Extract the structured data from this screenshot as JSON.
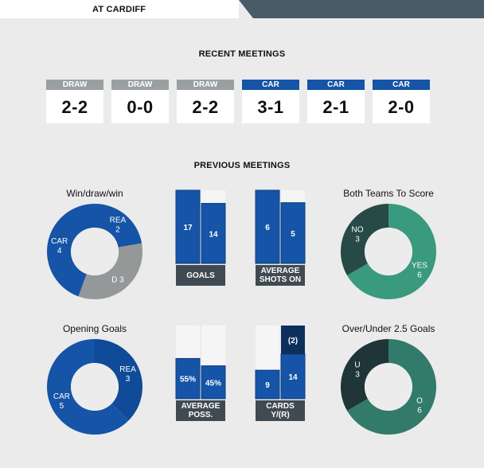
{
  "header": {
    "tab_label": "AT CARDIFF"
  },
  "colors": {
    "draw": "#9aa0a2",
    "car": "#1554a6",
    "dark_blue": "#0d2f5c",
    "grey": "#959899",
    "teal": "#3a9a7e",
    "dark_teal": "#274a47",
    "bar_bg": "#f5f5f5",
    "label_bg": "#3f4a52"
  },
  "recent": {
    "title": "RECENT MEETINGS",
    "matches": [
      {
        "result": "DRAW",
        "score": "2-2"
      },
      {
        "result": "DRAW",
        "score": "0-0"
      },
      {
        "result": "DRAW",
        "score": "2-2"
      },
      {
        "result": "CAR",
        "score": "3-1"
      },
      {
        "result": "CAR",
        "score": "2-1"
      },
      {
        "result": "CAR",
        "score": "2-0"
      }
    ]
  },
  "previous": {
    "title": "PREVIOUS MEETINGS"
  },
  "wdw": {
    "title": "Win/draw/win",
    "segments": [
      {
        "label": "REA",
        "value": 2,
        "text": "2",
        "color": "#1554a6"
      },
      {
        "label": "D",
        "value": 3,
        "text": "3",
        "color": "#959899"
      },
      {
        "label": "CAR",
        "value": 4,
        "text": "4",
        "color": "#1554a6"
      }
    ]
  },
  "btts": {
    "title": "Both Teams To Score",
    "segments": [
      {
        "label": "YES",
        "value": 6,
        "text": "6",
        "color": "#3a9a7e"
      },
      {
        "label": "NO",
        "value": 3,
        "text": "3",
        "color": "#274a47"
      }
    ]
  },
  "opening": {
    "title": "Opening Goals",
    "segments": [
      {
        "label": "REA",
        "value": 3,
        "text": "3",
        "color": "#0f4b98"
      },
      {
        "label": "CAR",
        "value": 5,
        "text": "5",
        "color": "#1554a6"
      }
    ]
  },
  "ou": {
    "title": "Over/Under 2.5 Goals",
    "segments": [
      {
        "label": "O",
        "value": 6,
        "text": "6",
        "color": "#327a6a"
      },
      {
        "label": "U",
        "value": 3,
        "text": "3",
        "color": "#1f3537"
      }
    ]
  },
  "goals": {
    "label": "GOALS",
    "bars": [
      {
        "value": 17,
        "text": "17",
        "fraction": 1.0
      },
      {
        "value": 14,
        "text": "14",
        "fraction": 0.82
      }
    ]
  },
  "shots": {
    "label_line1": "AVERAGE",
    "label_line2": "SHOTS ON",
    "bars": [
      {
        "value": 6,
        "text": "6",
        "fraction": 1.0
      },
      {
        "value": 5,
        "text": "5",
        "fraction": 0.83
      }
    ]
  },
  "poss": {
    "label_line1": "AVERAGE",
    "label_line2": "POSS.",
    "bars": [
      {
        "value": 55,
        "text": "55%",
        "fraction": 0.55
      },
      {
        "value": 45,
        "text": "45%",
        "fraction": 0.45
      }
    ]
  },
  "cards": {
    "label_line1": "CARDS",
    "label_line2": "Y/(R)",
    "bars": [
      {
        "value": 9,
        "text": "9",
        "fraction": 0.39
      },
      {
        "value": 14,
        "text": "14",
        "red": 2,
        "red_text": "(2)",
        "fraction": 0.61
      }
    ]
  }
}
